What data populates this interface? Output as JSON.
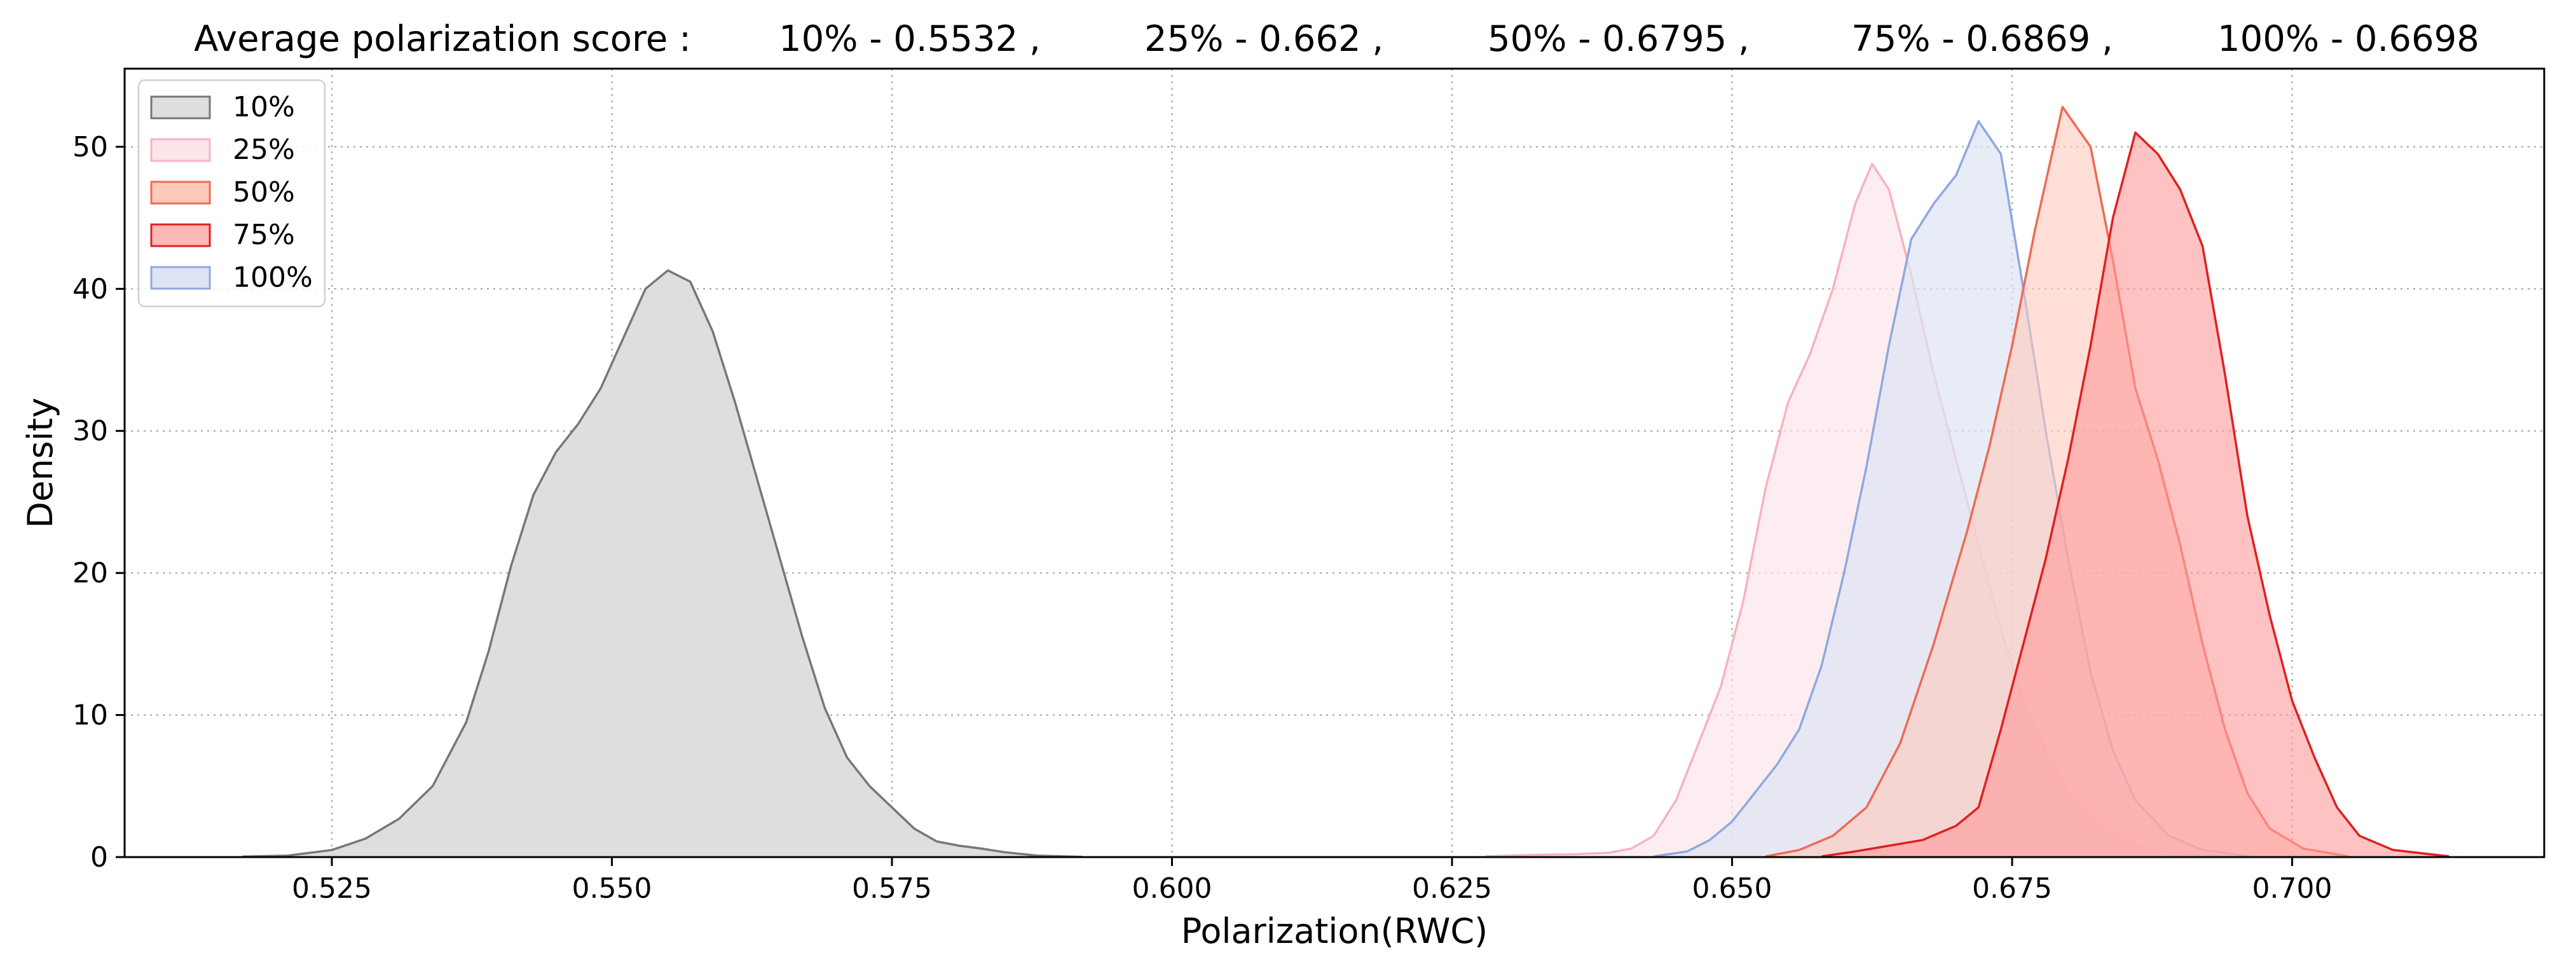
{
  "chart_data": {
    "type": "area",
    "title": "",
    "header_label": "Average polarization score :",
    "header_entries": [
      "10% - 0.5532 ,",
      "25% - 0.662 ,",
      "50% - 0.6795 ,",
      "75% - 0.6869 ,",
      "100% - 0.6698"
    ],
    "xlabel": "Polarization(RWC)",
    "ylabel": "Density",
    "xlim": [
      0.5065,
      0.7225
    ],
    "ylim": [
      0,
      55.5
    ],
    "xticks": [
      0.525,
      0.55,
      0.575,
      0.6,
      0.625,
      0.65,
      0.675,
      0.7
    ],
    "xtick_labels": [
      "0.525",
      "0.550",
      "0.575",
      "0.600",
      "0.625",
      "0.650",
      "0.675",
      "0.700"
    ],
    "yticks": [
      0,
      10,
      20,
      30,
      40,
      50
    ],
    "ytick_labels": [
      "0",
      "10",
      "20",
      "30",
      "40",
      "50"
    ],
    "grid": true,
    "legend_position": "top-left",
    "series": [
      {
        "name": "10%",
        "fill": "#dedede",
        "stroke": "#777777",
        "fill_opacity": 1,
        "points": [
          [
            0.517,
            0.03
          ],
          [
            0.521,
            0.1
          ],
          [
            0.525,
            0.5
          ],
          [
            0.528,
            1.3
          ],
          [
            0.531,
            2.7
          ],
          [
            0.534,
            5
          ],
          [
            0.537,
            9.5
          ],
          [
            0.539,
            14.5
          ],
          [
            0.541,
            20.5
          ],
          [
            0.543,
            25.5
          ],
          [
            0.545,
            28.5
          ],
          [
            0.547,
            30.5
          ],
          [
            0.549,
            33
          ],
          [
            0.551,
            36.5
          ],
          [
            0.553,
            40
          ],
          [
            0.555,
            41.3
          ],
          [
            0.557,
            40.5
          ],
          [
            0.559,
            37
          ],
          [
            0.561,
            32
          ],
          [
            0.563,
            26.5
          ],
          [
            0.565,
            21
          ],
          [
            0.567,
            15.5
          ],
          [
            0.569,
            10.5
          ],
          [
            0.571,
            7
          ],
          [
            0.573,
            5
          ],
          [
            0.575,
            3.5
          ],
          [
            0.577,
            2
          ],
          [
            0.579,
            1.1
          ],
          [
            0.581,
            0.8
          ],
          [
            0.583,
            0.6
          ],
          [
            0.585,
            0.35
          ],
          [
            0.588,
            0.1
          ],
          [
            0.592,
            0.02
          ]
        ]
      },
      {
        "name": "25%",
        "fill": "#fde6ea",
        "stroke": "#f5b3c2",
        "fill_opacity": 0.7,
        "points": [
          [
            0.628,
            0.05
          ],
          [
            0.632,
            0.15
          ],
          [
            0.636,
            0.2
          ],
          [
            0.639,
            0.3
          ],
          [
            0.641,
            0.6
          ],
          [
            0.643,
            1.5
          ],
          [
            0.645,
            4
          ],
          [
            0.647,
            8
          ],
          [
            0.649,
            12
          ],
          [
            0.651,
            18
          ],
          [
            0.653,
            26
          ],
          [
            0.655,
            32
          ],
          [
            0.657,
            35.5
          ],
          [
            0.659,
            40
          ],
          [
            0.661,
            46
          ],
          [
            0.6625,
            48.8
          ],
          [
            0.664,
            47
          ],
          [
            0.666,
            41
          ],
          [
            0.668,
            34
          ],
          [
            0.67,
            28
          ],
          [
            0.672,
            22
          ],
          [
            0.674,
            16
          ],
          [
            0.676,
            11
          ],
          [
            0.678,
            7.5
          ],
          [
            0.68,
            4.5
          ],
          [
            0.683,
            2
          ],
          [
            0.686,
            0.8
          ],
          [
            0.69,
            0.2
          ],
          [
            0.694,
            0.03
          ]
        ]
      },
      {
        "name": "100%",
        "fill": "#dde4f3",
        "stroke": "#90a8e0",
        "fill_opacity": 0.7,
        "points": [
          [
            0.643,
            0.05
          ],
          [
            0.646,
            0.4
          ],
          [
            0.648,
            1.2
          ],
          [
            0.65,
            2.5
          ],
          [
            0.652,
            4.5
          ],
          [
            0.654,
            6.5
          ],
          [
            0.656,
            9
          ],
          [
            0.658,
            13.5
          ],
          [
            0.66,
            20
          ],
          [
            0.662,
            27.5
          ],
          [
            0.664,
            36
          ],
          [
            0.666,
            43.5
          ],
          [
            0.668,
            46
          ],
          [
            0.67,
            48
          ],
          [
            0.672,
            51.8
          ],
          [
            0.674,
            49.5
          ],
          [
            0.676,
            40
          ],
          [
            0.678,
            30
          ],
          [
            0.68,
            21
          ],
          [
            0.682,
            13
          ],
          [
            0.684,
            7.5
          ],
          [
            0.686,
            4
          ],
          [
            0.689,
            1.5
          ],
          [
            0.692,
            0.5
          ],
          [
            0.696,
            0.08
          ]
        ]
      },
      {
        "name": "50%",
        "fill": "#ffcabd",
        "stroke": "#ef6a52",
        "fill_opacity": 0.6,
        "points": [
          [
            0.653,
            0.05
          ],
          [
            0.656,
            0.5
          ],
          [
            0.659,
            1.5
          ],
          [
            0.662,
            3.5
          ],
          [
            0.665,
            8
          ],
          [
            0.668,
            15
          ],
          [
            0.671,
            23
          ],
          [
            0.673,
            29
          ],
          [
            0.675,
            36
          ],
          [
            0.677,
            44
          ],
          [
            0.6795,
            52.8
          ],
          [
            0.682,
            50
          ],
          [
            0.684,
            42
          ],
          [
            0.686,
            33
          ],
          [
            0.688,
            28
          ],
          [
            0.69,
            22
          ],
          [
            0.692,
            15
          ],
          [
            0.694,
            9
          ],
          [
            0.696,
            4.5
          ],
          [
            0.698,
            2
          ],
          [
            0.701,
            0.6
          ],
          [
            0.705,
            0.05
          ]
        ]
      },
      {
        "name": "75%",
        "fill": "#ff9a9a",
        "stroke": "#e01f1f",
        "fill_opacity": 0.6,
        "points": [
          [
            0.658,
            0.05
          ],
          [
            0.661,
            0.4
          ],
          [
            0.664,
            0.8
          ],
          [
            0.667,
            1.2
          ],
          [
            0.67,
            2.2
          ],
          [
            0.672,
            3.5
          ],
          [
            0.674,
            9
          ],
          [
            0.676,
            15
          ],
          [
            0.678,
            21
          ],
          [
            0.68,
            28
          ],
          [
            0.682,
            36
          ],
          [
            0.684,
            45
          ],
          [
            0.686,
            51
          ],
          [
            0.688,
            49.5
          ],
          [
            0.69,
            47
          ],
          [
            0.692,
            43
          ],
          [
            0.694,
            34
          ],
          [
            0.696,
            24
          ],
          [
            0.698,
            17
          ],
          [
            0.7,
            11
          ],
          [
            0.702,
            7
          ],
          [
            0.704,
            3.5
          ],
          [
            0.706,
            1.5
          ],
          [
            0.709,
            0.5
          ],
          [
            0.714,
            0.05
          ]
        ]
      }
    ],
    "legend_entries": [
      {
        "name": "10%",
        "fill": "#dedede",
        "stroke": "#777777"
      },
      {
        "name": "25%",
        "fill": "#fde6ea",
        "stroke": "#f5b3c2"
      },
      {
        "name": "50%",
        "fill": "#ffcabd",
        "stroke": "#ef6a52"
      },
      {
        "name": "75%",
        "fill": "#ffb8b8",
        "stroke": "#e01f1f"
      },
      {
        "name": "100%",
        "fill": "#dde4f3",
        "stroke": "#90a8e0"
      }
    ]
  }
}
